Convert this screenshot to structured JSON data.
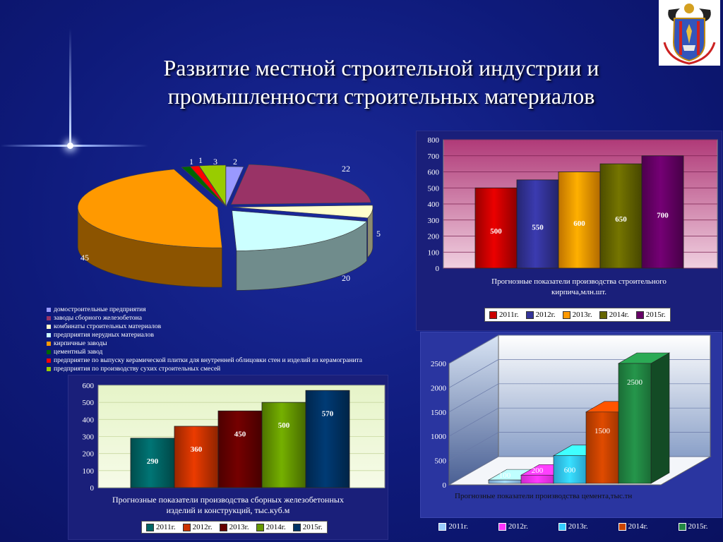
{
  "slide": {
    "title_line1": "Развитие местной строительной индустрии и",
    "title_line2": "промышленности строительных материалов"
  },
  "chart_data": [
    {
      "type": "pie",
      "series": [
        {
          "values": [
            2,
            22,
            5,
            20,
            45,
            1,
            1,
            3
          ]
        }
      ],
      "categories": [
        "домостроительные предприятия",
        "заводы сборного железобетона",
        "комбинаты строительных материалов",
        "предприятия нерудных материалов",
        "кирпичные заводы",
        "цементный завод",
        "предприятие по выпуску керамической плитки для внутренней  облицовки стен и изделий из керамогранита",
        "предприятия по производству сухих строительных смесей"
      ],
      "colors": [
        "#9999ff",
        "#993366",
        "#ffffcc",
        "#ccffff",
        "#ff9900",
        "#006600",
        "#ff0000",
        "#99cc00"
      ],
      "labels": [
        "2",
        "22",
        "5",
        "20",
        "45",
        "1",
        "1",
        "3"
      ],
      "legend": "bottom-left"
    },
    {
      "type": "bar",
      "title": "Прогнозные показатели производства строительного кирпича,млн.шт.",
      "categories": [
        "2011г.",
        "2012г.",
        "2013г.",
        "2014г.",
        "2015г."
      ],
      "values": [
        500,
        550,
        600,
        650,
        700
      ],
      "value_labels": [
        "500",
        "550",
        "600",
        "650",
        "700"
      ],
      "colors": [
        "#cc0000",
        "#333399",
        "#ff9900",
        "#666600",
        "#660066"
      ],
      "ylim": [
        0,
        800
      ],
      "yticks": [
        "0",
        "100",
        "200",
        "300",
        "400",
        "500",
        "600",
        "700",
        "800"
      ],
      "legend": "bottom"
    },
    {
      "type": "bar",
      "title": "Прогнозные показатели производства сборных железобетонных изделий и конструкций, тыс.куб.м",
      "categories": [
        "2011г.",
        "2012г.",
        "2013г.",
        "2014г.",
        "2015г."
      ],
      "values": [
        290,
        360,
        450,
        500,
        570
      ],
      "value_labels": [
        "290",
        "360",
        "450",
        "500",
        "570"
      ],
      "colors": [
        "#006666",
        "#cc3300",
        "#660000",
        "#669900",
        "#003366"
      ],
      "ylim": [
        0,
        600
      ],
      "yticks": [
        "0",
        "100",
        "200",
        "300",
        "400",
        "500",
        "600"
      ],
      "legend": "bottom"
    },
    {
      "type": "bar",
      "title": "Прогнозные показатели производства цемента,тыс.тн",
      "categories": [
        "2011г.",
        "2012г.",
        "2013г.",
        "2014г.",
        "2015г."
      ],
      "values": [
        100,
        200,
        600,
        1500,
        2500
      ],
      "value_labels": [
        "100",
        "200",
        "600",
        "1500",
        "2500"
      ],
      "colors": [
        "#99ccff",
        "#ff33ff",
        "#33ccff",
        "#cc4400",
        "#228844"
      ],
      "ylim": [
        0,
        2500
      ],
      "yticks": [
        "0",
        "500",
        "1000",
        "1500",
        "2000",
        "2500"
      ],
      "legend": "bottom"
    }
  ]
}
